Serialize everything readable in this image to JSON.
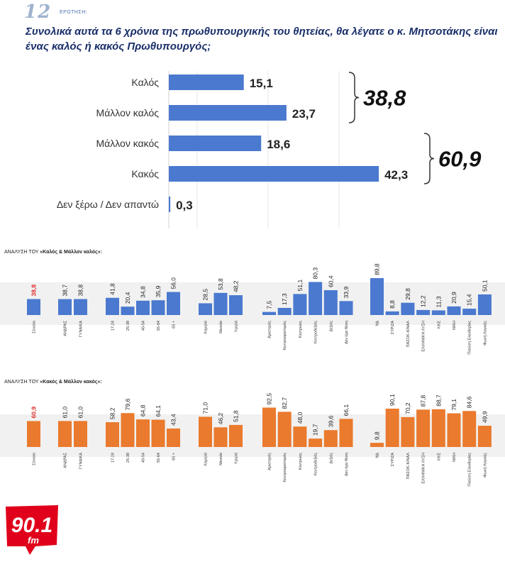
{
  "question": {
    "number": "12",
    "label": "ΕΡΩΤΗΣΗ:",
    "text": "Συνολικά αυτά τα 6 χρόνια της πρωθυπουργικής του θητείας, θα λέγατε ο κ. Μητσοτάκης είναι ένας καλός ή κακός Πρωθυπουργός;"
  },
  "sections": {
    "good_prefix": "ΑΝΑΛΥΣΗ ΤΟΥ ",
    "good_name": "«Καλός & Μάλλον καλός»:",
    "bad_prefix": "ΑΝΑΛΥΣΗ ΤΟΥ ",
    "bad_name": "«Κακός & Μάλλον κακός»:"
  },
  "logo": {
    "number": "90.1",
    "suffix": "fm"
  },
  "colors": {
    "blue": "#4a79cf",
    "orange": "#ea7a2d",
    "red_label": "#e02a2a",
    "question": "#1a2f6a",
    "logo_red": "#e0001b"
  },
  "chart_data": [
    {
      "type": "bar",
      "orientation": "horizontal",
      "categories": [
        "Καλός",
        "Μάλλον καλός",
        "Μάλλον κακός",
        "Κακός",
        "Δεν ξέρω / Δεν απαντώ"
      ],
      "values": [
        15.1,
        23.7,
        18.6,
        42.3,
        0.3
      ],
      "labels": [
        "15,1",
        "23,7",
        "18,6",
        "42,3",
        "0,3"
      ],
      "xlim": [
        0,
        60
      ],
      "totals": [
        {
          "label": "38,8",
          "from": 0,
          "to": 1
        },
        {
          "label": "60,9",
          "from": 2,
          "to": 3
        }
      ]
    },
    {
      "type": "bar",
      "title": "ΑΝΑΛΥΣΗ ΤΟΥ «Καλός & Μάλλον καλός»:",
      "ylim": [
        0,
        100
      ],
      "groups": [
        {
          "categories": [
            "Σύνολο"
          ],
          "values": [
            38.8
          ],
          "labels": [
            "38,8"
          ]
        },
        {
          "categories": [
            "ΑΝΔΡΑΣ",
            "ΓΥΝΑΙΚΑ"
          ],
          "values": [
            38.7,
            38.8
          ],
          "labels": [
            "38,7",
            "38,8"
          ]
        },
        {
          "categories": [
            "17-24",
            "25-39",
            "40-54",
            "55-64",
            "65 +"
          ],
          "values": [
            41.8,
            20.4,
            34.8,
            35.9,
            56.0
          ],
          "labels": [
            "41,8",
            "20,4",
            "34,8",
            "35,9",
            "56,0"
          ]
        },
        {
          "categories": [
            "Χαμηλό",
            "Μεσαίο",
            "Υψηλό"
          ],
          "values": [
            28.5,
            53.8,
            48.2
          ],
          "labels": [
            "28,5",
            "53,8",
            "48,2"
          ]
        },
        {
          "categories": [
            "Αριστερός",
            "Κεντροαριστερός",
            "Κεντρώος",
            "Κεντροδεξιός",
            "Δεξιός",
            "Δεν έχει θέση"
          ],
          "values": [
            7.5,
            17.3,
            51.1,
            80.3,
            60.4,
            33.9
          ],
          "labels": [
            "7,5",
            "17,3",
            "51,1",
            "80,3",
            "60,4",
            "33,9"
          ]
        },
        {
          "categories": [
            "ΝΔ",
            "ΣΥΡΙΖΑ",
            "ΠΑΣΟΚ-ΚΙΝΑΛ",
            "ΕΛΛΗΝΙΚΗ ΛΥΣΗ",
            "ΚΚΕ",
            "ΝΙΚΗ",
            "Πλεύση Ελευθερίας",
            "Φωνή Λογικής"
          ],
          "values": [
            89.8,
            8.8,
            29.8,
            12.2,
            11.3,
            20.9,
            15.4,
            50.1
          ],
          "labels": [
            "89,8",
            "8,8",
            "29,8",
            "12,2",
            "11,3",
            "20,9",
            "15,4",
            "50,1"
          ]
        }
      ]
    },
    {
      "type": "bar",
      "title": "ΑΝΑΛΥΣΗ ΤΟΥ «Κακός & Μάλλον κακός»:",
      "ylim": [
        0,
        100
      ],
      "groups": [
        {
          "categories": [
            "Σύνολο"
          ],
          "values": [
            60.9
          ],
          "labels": [
            "60,9"
          ]
        },
        {
          "categories": [
            "ΑΝΔΡΑΣ",
            "ΓΥΝΑΙΚΑ"
          ],
          "values": [
            61.0,
            61.0
          ],
          "labels": [
            "61,0",
            "61,0"
          ]
        },
        {
          "categories": [
            "17-24",
            "25-39",
            "40-54",
            "55-64",
            "65 +"
          ],
          "values": [
            58.2,
            79.6,
            64.8,
            64.1,
            43.4
          ],
          "labels": [
            "58,2",
            "79,6",
            "64,8",
            "64,1",
            "43,4"
          ]
        },
        {
          "categories": [
            "Χαμηλό",
            "Μεσαίο",
            "Υψηλό"
          ],
          "values": [
            71.0,
            46.2,
            51.8
          ],
          "labels": [
            "71,0",
            "46,2",
            "51,8"
          ]
        },
        {
          "categories": [
            "Αριστερός",
            "Κεντροαριστερός",
            "Κεντρώος",
            "Κεντροδεξιός",
            "Δεξιός",
            "Δεν έχει θέση"
          ],
          "values": [
            92.5,
            82.7,
            48.0,
            19.7,
            39.6,
            66.1
          ],
          "labels": [
            "92,5",
            "82,7",
            "48,0",
            "19,7",
            "39,6",
            "66,1"
          ]
        },
        {
          "categories": [
            "ΝΔ",
            "ΣΥΡΙΖΑ",
            "ΠΑΣΟΚ-ΚΙΝΑΛ",
            "ΕΛΛΗΝΙΚΗ ΛΥΣΗ",
            "ΚΚΕ",
            "ΝΙΚΗ",
            "Πλεύση Ελευθερίας",
            "Φωνή Λογικής"
          ],
          "values": [
            9.8,
            90.1,
            70.2,
            87.8,
            88.7,
            79.1,
            84.6,
            49.9
          ],
          "labels": [
            "9,8",
            "90,1",
            "70,2",
            "87,8",
            "88,7",
            "79,1",
            "84,6",
            "49,9"
          ]
        }
      ]
    }
  ]
}
